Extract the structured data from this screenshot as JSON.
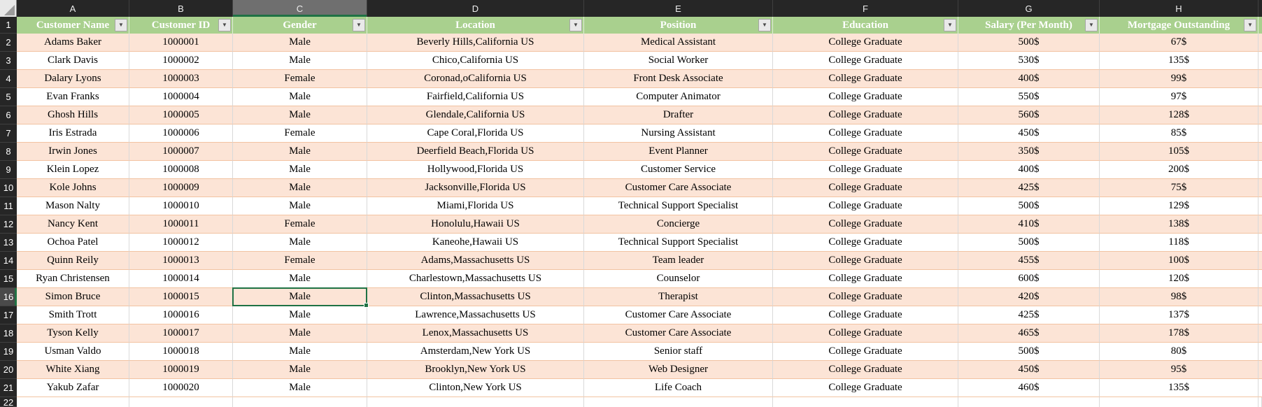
{
  "sheet": {
    "column_letters": [
      "A",
      "B",
      "C",
      "D",
      "E",
      "F",
      "G",
      "H"
    ],
    "header_row_number": 1,
    "headers": [
      "Customer Name",
      "Customer ID",
      "Gender",
      "Location",
      "Position",
      "Education",
      "Salary (Per Month)",
      "Mortgage Outstanding"
    ],
    "filter_icon": "▼",
    "selected": {
      "row": 16,
      "column": "C",
      "value": "Male"
    },
    "rows": [
      {
        "n": 2,
        "cells": [
          "Adams Baker",
          "1000001",
          "Male",
          "Beverly Hills,California US",
          "Medical Assistant",
          "College Graduate",
          "500$",
          "67$"
        ]
      },
      {
        "n": 3,
        "cells": [
          "Clark Davis",
          "1000002",
          "Male",
          "Chico,California US",
          "Social Worker",
          "College Graduate",
          "530$",
          "135$"
        ]
      },
      {
        "n": 4,
        "cells": [
          "Dalary Lyons",
          "1000003",
          "Female",
          "Coronad,oCalifornia US",
          "Front Desk Associate",
          "College Graduate",
          "400$",
          "99$"
        ]
      },
      {
        "n": 5,
        "cells": [
          "Evan Franks",
          "1000004",
          "Male",
          "Fairfield,California US",
          "Computer Animator",
          "College Graduate",
          "550$",
          "97$"
        ]
      },
      {
        "n": 6,
        "cells": [
          "Ghosh Hills",
          "1000005",
          "Male",
          "Glendale,California US",
          "Drafter",
          "College Graduate",
          "560$",
          "128$"
        ]
      },
      {
        "n": 7,
        "cells": [
          "Iris Estrada",
          "1000006",
          "Female",
          "Cape Coral,Florida US",
          "Nursing Assistant",
          "College Graduate",
          "450$",
          "85$"
        ]
      },
      {
        "n": 8,
        "cells": [
          "Irwin Jones",
          "1000007",
          "Male",
          "Deerfield Beach,Florida US",
          "Event Planner",
          "College Graduate",
          "350$",
          "105$"
        ]
      },
      {
        "n": 9,
        "cells": [
          "Klein Lopez",
          "1000008",
          "Male",
          "Hollywood,Florida US",
          "Customer Service",
          "College Graduate",
          "400$",
          "200$"
        ]
      },
      {
        "n": 10,
        "cells": [
          "Kole Johns",
          "1000009",
          "Male",
          "Jacksonville,Florida US",
          "Customer Care Associate",
          "College Graduate",
          "425$",
          "75$"
        ]
      },
      {
        "n": 11,
        "cells": [
          "Mason Nalty",
          "1000010",
          "Male",
          "Miami,Florida US",
          "Technical Support Specialist",
          "College Graduate",
          "500$",
          "129$"
        ]
      },
      {
        "n": 12,
        "cells": [
          "Nancy Kent",
          "1000011",
          "Female",
          "Honolulu,Hawaii US",
          "Concierge",
          "College Graduate",
          "410$",
          "138$"
        ]
      },
      {
        "n": 13,
        "cells": [
          "Ochoa Patel",
          "1000012",
          "Male",
          "Kaneohe,Hawaii US",
          "Technical Support Specialist",
          "College Graduate",
          "500$",
          "118$"
        ]
      },
      {
        "n": 14,
        "cells": [
          "Quinn Reily",
          "1000013",
          "Female",
          "Adams,Massachusetts US",
          "Team leader",
          "College Graduate",
          "455$",
          "100$"
        ]
      },
      {
        "n": 15,
        "cells": [
          "Ryan Christensen",
          "1000014",
          "Male",
          "Charlestown,Massachusetts US",
          "Counselor",
          "College Graduate",
          "600$",
          "120$"
        ]
      },
      {
        "n": 16,
        "cells": [
          "Simon Bruce",
          "1000015",
          "Male",
          "Clinton,Massachusetts US",
          "Therapist",
          "College Graduate",
          "420$",
          "98$"
        ]
      },
      {
        "n": 17,
        "cells": [
          "Smith Trott",
          "1000016",
          "Male",
          "Lawrence,Massachusetts US",
          "Customer Care Associate",
          "College Graduate",
          "425$",
          "137$"
        ]
      },
      {
        "n": 18,
        "cells": [
          "Tyson Kelly",
          "1000017",
          "Male",
          "Lenox,Massachusetts US",
          "Customer Care Associate",
          "College Graduate",
          "465$",
          "178$"
        ]
      },
      {
        "n": 19,
        "cells": [
          "Usman Valdo",
          "1000018",
          "Male",
          "Amsterdam,New York US",
          "Senior staff",
          "College Graduate",
          "500$",
          "80$"
        ]
      },
      {
        "n": 20,
        "cells": [
          "White Xiang",
          "1000019",
          "Male",
          "Brooklyn,New York US",
          "Web Designer",
          "College Graduate",
          "450$",
          "95$"
        ]
      },
      {
        "n": 21,
        "cells": [
          "Yakub Zafar",
          "1000020",
          "Male",
          "Clinton,New York US",
          "Life Coach",
          "College Graduate",
          "460$",
          "135$"
        ]
      }
    ],
    "partial_row_number": 22,
    "colors": {
      "header_fill": "#A9D08E",
      "band_fill": "#FCE4D6",
      "selection_green": "#1F7244",
      "gutter_dark": "#262626",
      "position_text": "#1F3864",
      "education_text": "#4C5F37"
    }
  }
}
